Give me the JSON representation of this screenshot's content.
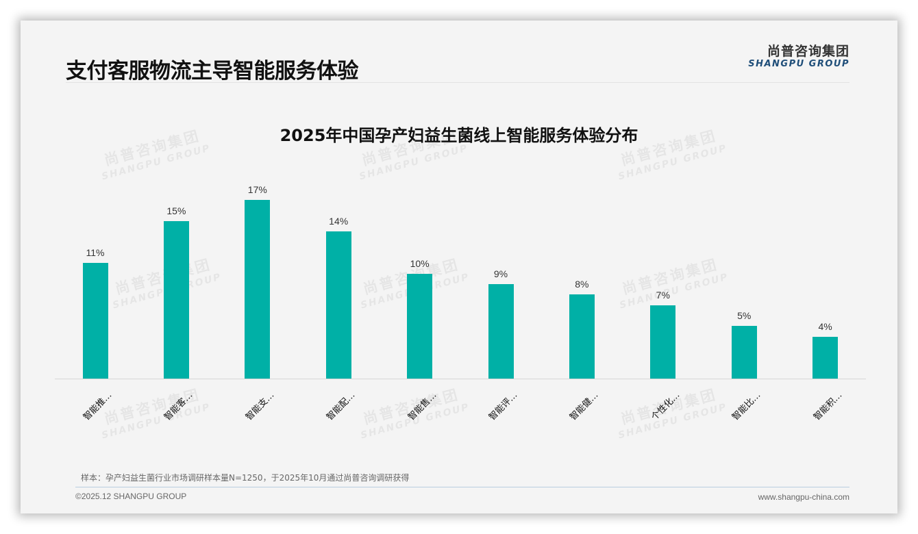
{
  "header": {
    "title": "支付客服物流主导智能服务体验",
    "logo_cn": "尚普咨询集团",
    "logo_en": "SHANGPU GROUP"
  },
  "watermark": {
    "cn": "尚普咨询集团",
    "en": "SHANGPU GROUP"
  },
  "colors": {
    "bar": "#00b0a6",
    "logo_en": "#1f4e79",
    "background": "#f4f4f4"
  },
  "chart_data": {
    "type": "bar",
    "title": "2025年中国孕产妇益生菌线上智能服务体验分布",
    "xlabel": "",
    "ylabel": "",
    "categories": [
      "智能推…",
      "智能客…",
      "智能支…",
      "智能配…",
      "智能售…",
      "智能评…",
      "智能健…",
      "个性化…",
      "智能比…",
      "智能积…"
    ],
    "values": [
      11,
      15,
      17,
      14,
      10,
      9,
      8,
      7,
      5,
      4
    ],
    "value_labels": [
      "11%",
      "15%",
      "17%",
      "14%",
      "10%",
      "9%",
      "8%",
      "7%",
      "5%",
      "4%"
    ],
    "unit": "%",
    "ylim": [
      0,
      17
    ],
    "grid": false,
    "legend": null,
    "bar_color": "#00b0a6"
  },
  "footer": {
    "note": "样本：孕产妇益生菌行业市场调研样本量N=1250，于2025年10月通过尚普咨询调研获得",
    "copyright": "©2025.12 SHANGPU GROUP",
    "website": "www.shangpu-china.com"
  }
}
